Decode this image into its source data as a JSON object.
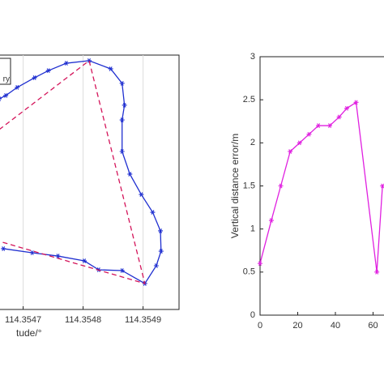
{
  "chart_data": [
    {
      "type": "line",
      "x_label": "tude/°",
      "xlim": [
        114.35466,
        114.35496
      ],
      "ylim": [
        0,
        100
      ],
      "xticks": [
        {
          "value": 114.3547,
          "label": "114.3547"
        },
        {
          "value": 114.3548,
          "label": "114.3548"
        },
        {
          "value": 114.3549,
          "label": "114.3549"
        }
      ],
      "grid": true,
      "legend": "upper left",
      "series": [
        {
          "name": "ry",
          "color": "#1f2fd0",
          "marker": "star",
          "linestyle": "solid",
          "x": [
            114.35466,
            114.354671,
            114.35469,
            114.354719,
            114.354742,
            114.354772,
            114.35481,
            114.354846,
            114.354865,
            114.354869,
            114.354865,
            114.354865,
            114.354878,
            114.354897,
            114.354916,
            114.354929,
            114.35493,
            114.354922,
            114.354903,
            114.354865,
            114.354826,
            114.354802,
            114.354758,
            114.354715,
            114.354667
          ],
          "values": [
            82.8,
            84.1,
            87.3,
            91.1,
            93.9,
            96.8,
            97.8,
            94.6,
            88.9,
            80.3,
            74.5,
            62.1,
            53.2,
            45.2,
            38.2,
            30.9,
            22.9,
            17.2,
            10.2,
            15.3,
            15.6,
            19.1,
            21.0,
            22.3,
            23.9
          ]
        },
        {
          "color": "#d4145a",
          "marker": "none",
          "linestyle": "dashed",
          "x": [
            114.35466,
            114.35481,
            114.354903,
            114.35466
          ],
          "values": [
            70.7,
            97.8,
            10.2,
            26.8
          ]
        }
      ]
    },
    {
      "type": "line",
      "y_label": "Vertical distance error/m",
      "xlim": [
        0,
        80
      ],
      "ylim": [
        0,
        3
      ],
      "xticks": [
        0,
        20,
        40,
        60
      ],
      "yticks": [
        0,
        0.5,
        1,
        1.5,
        2,
        2.5,
        3
      ],
      "grid": false,
      "series": [
        {
          "color": "#e020e0",
          "marker": "star",
          "linestyle": "solid",
          "x": [
            0,
            6,
            11,
            16,
            21,
            26,
            31,
            37,
            42,
            46,
            51,
            62,
            65
          ],
          "values": [
            0.6,
            1.1,
            1.5,
            1.9,
            2.0,
            2.1,
            2.2,
            2.2,
            2.3,
            2.4,
            2.47,
            0.5,
            1.5
          ]
        }
      ]
    }
  ]
}
